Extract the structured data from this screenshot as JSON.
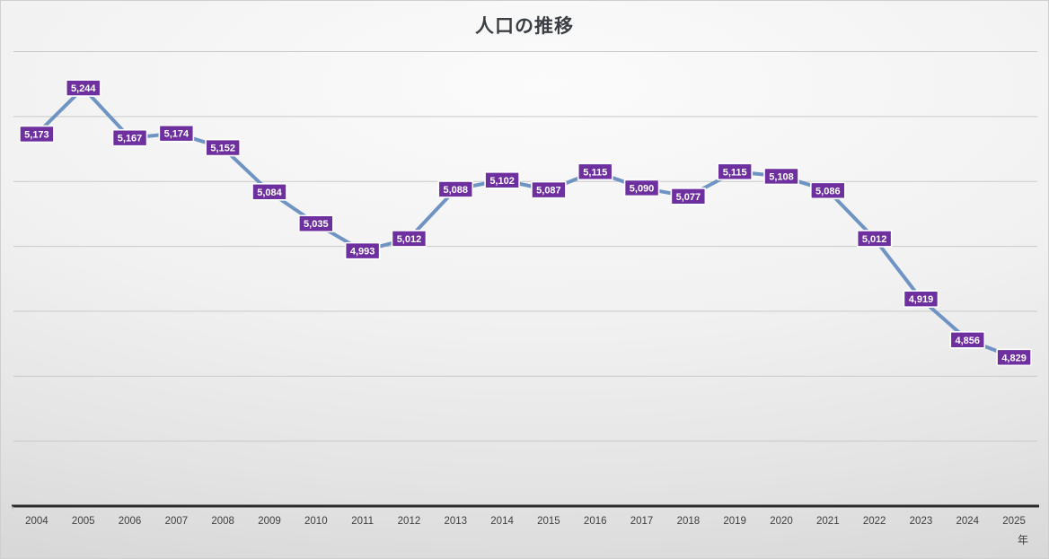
{
  "title": "人口の推移",
  "axis_unit_label": "年",
  "colors": {
    "line": "#6f94c4",
    "marker_fill": "#c5d5e8",
    "label_bg": "#6e2f9f",
    "label_text": "#ffffff",
    "label_border": "#ffffff",
    "gridline": "#c9c9c9",
    "axis": "#2b2b2b",
    "tick_text": "#404040"
  },
  "chart_data": {
    "type": "line",
    "title": "人口の推移",
    "xlabel": "年",
    "ylabel": "",
    "categories": [
      "2004",
      "2005",
      "2006",
      "2007",
      "2008",
      "2009",
      "2010",
      "2011",
      "2012",
      "2013",
      "2014",
      "2015",
      "2016",
      "2017",
      "2018",
      "2019",
      "2020",
      "2021",
      "2022",
      "2023",
      "2024",
      "2025"
    ],
    "values": [
      5173,
      5244,
      5167,
      5174,
      5152,
      5084,
      5035,
      4993,
      5012,
      5088,
      5102,
      5087,
      5115,
      5090,
      5077,
      5115,
      5108,
      5086,
      5012,
      4919,
      4856,
      4829
    ],
    "data_labels": [
      "5,173",
      "5,244",
      "5,167",
      "5,174",
      "5,152",
      "5,084",
      "5,035",
      "4,993",
      "5,012",
      "5,088",
      "5,102",
      "5,087",
      "5,115",
      "5,090",
      "5,077",
      "5,115",
      "5,108",
      "5,086",
      "5,012",
      "4,919",
      "4,856",
      "4,829"
    ],
    "ylim": [
      4600,
      5300
    ],
    "gridline_interval": 100,
    "grid": true,
    "legend_position": "none",
    "marker": "circle",
    "data_label_position": "center"
  }
}
